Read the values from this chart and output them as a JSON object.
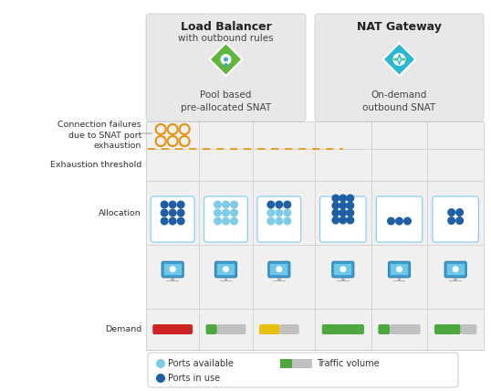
{
  "title_lb": "Load Balancer",
  "subtitle_lb": "with outbound rules",
  "label_lb_sub": "Pool based\npre-allocated SNAT",
  "title_nat": "NAT Gateway",
  "label_nat_sub": "On-demand\noutbound SNAT",
  "label_conn_fail": "Connection failures\ndue to SNAT port\nexhaustion",
  "label_exhaust": "Exhaustion threshold",
  "label_alloc": "Allocation",
  "label_demand": "Demand",
  "legend_avail": "Ports available",
  "legend_inuse": "Ports in use",
  "legend_traffic": "Traffic volume",
  "color_dark_blue": "#1f5fa6",
  "color_light_blue": "#7ecce8",
  "color_orange": "#e8920a",
  "color_green": "#4da83e",
  "color_gray": "#c0c0c0",
  "color_red": "#cc2222",
  "color_yellow": "#e8c010",
  "color_header_bg": "#e8e8e8",
  "color_grid_bg": "#f0f0f0",
  "color_border": "#c8c8c8"
}
